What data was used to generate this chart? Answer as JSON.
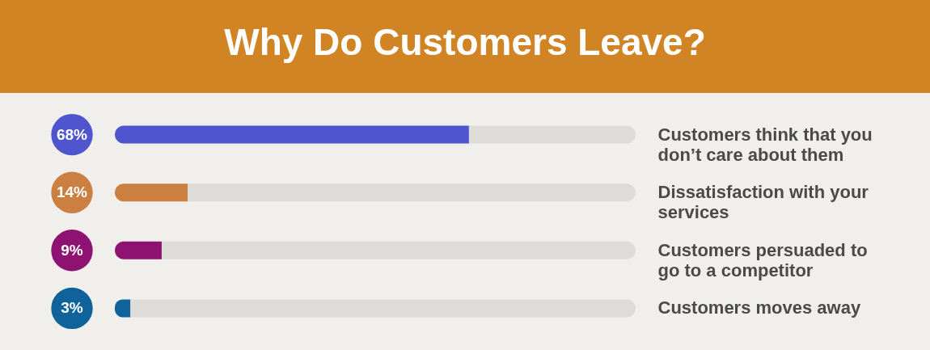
{
  "chart_data": {
    "type": "bar",
    "orientation": "horizontal",
    "stacked": true,
    "title": "Why Do Customers Leave?",
    "categories": [
      "Customers think that you don’t care about them",
      "Dissatisfaction with your services",
      "Customers persuaded to go to a competitor",
      "Customers moves away"
    ],
    "series": [
      {
        "values": [
          68,
          14,
          9,
          3
        ],
        "colors": [
          "#4f55cf",
          "#cb7f40",
          "#8e1272",
          "#10629a"
        ],
        "value_labels": [
          "68%",
          "14%",
          "9%",
          "3%"
        ]
      },
      {
        "values": [
          32,
          86,
          91,
          97
        ],
        "color": "#dedcd8"
      }
    ],
    "xlim": [
      0,
      100
    ],
    "tick_labels": "y"
  }
}
